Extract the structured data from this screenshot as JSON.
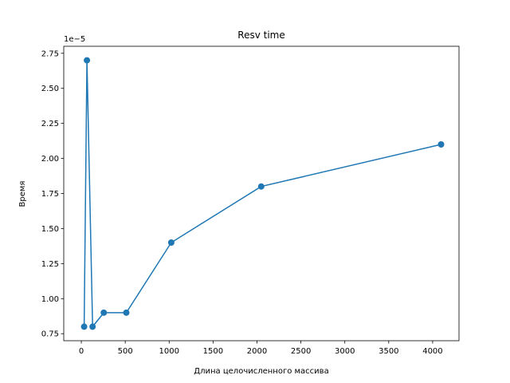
{
  "chart_data": {
    "type": "line",
    "title": "Resv time",
    "xlabel": "Длина целочисленного массива",
    "ylabel": "Время",
    "y_offset_label": "1e−5",
    "x": [
      32,
      64,
      128,
      256,
      512,
      1024,
      2048,
      4096
    ],
    "series": [
      {
        "values": [
          8.0,
          27.0,
          8.0,
          9.0,
          9.0,
          14.0,
          18.0,
          21.0
        ]
      }
    ],
    "xlim": [
      -200,
      4300
    ],
    "ylim": [
      7.0,
      28.0
    ],
    "x_ticks": [
      0,
      500,
      1000,
      1500,
      2000,
      2500,
      3000,
      3500,
      4000
    ],
    "x_tick_labels": [
      "0",
      "500",
      "1000",
      "1500",
      "2000",
      "2500",
      "3000",
      "3500",
      "4000"
    ],
    "y_ticks": [
      7.5,
      10.0,
      12.5,
      15.0,
      17.5,
      20.0,
      22.5,
      25.0,
      27.5
    ],
    "y_tick_labels": [
      "0.75",
      "1.00",
      "1.25",
      "1.50",
      "1.75",
      "2.00",
      "2.25",
      "2.50",
      "2.75"
    ],
    "grid": false,
    "legend": "none",
    "colors": {
      "line": "#1f77b4",
      "axes": "#000000"
    }
  }
}
